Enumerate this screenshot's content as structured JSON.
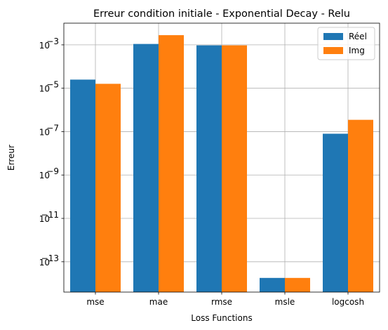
{
  "chart_data": {
    "type": "bar",
    "title": "Erreur condition initiale - Exponential Decay - Relu",
    "xlabel": "Loss Functions",
    "ylabel": "Erreur",
    "yscale": "log",
    "ylim": [
      4e-15,
      0.01
    ],
    "grid": true,
    "legend_position": "top-right",
    "categories": [
      "mse",
      "mae",
      "rmse",
      "msle",
      "logcosh"
    ],
    "series": [
      {
        "name": "Réel",
        "color": "#1f77b4",
        "values": [
          2.5e-05,
          0.0011,
          0.00095,
          1.8e-14,
          8e-08
        ]
      },
      {
        "name": "Img",
        "color": "#ff7f0e",
        "values": [
          1.6e-05,
          0.0028,
          0.00095,
          1.8e-14,
          3.5e-07
        ]
      }
    ],
    "y_ticks": [
      {
        "exp": -13,
        "base": "10"
      },
      {
        "exp": -11,
        "base": "10"
      },
      {
        "exp": -9,
        "base": "10"
      },
      {
        "exp": -7,
        "base": "10"
      },
      {
        "exp": -5,
        "base": "10"
      },
      {
        "exp": -3,
        "base": "10"
      }
    ]
  }
}
